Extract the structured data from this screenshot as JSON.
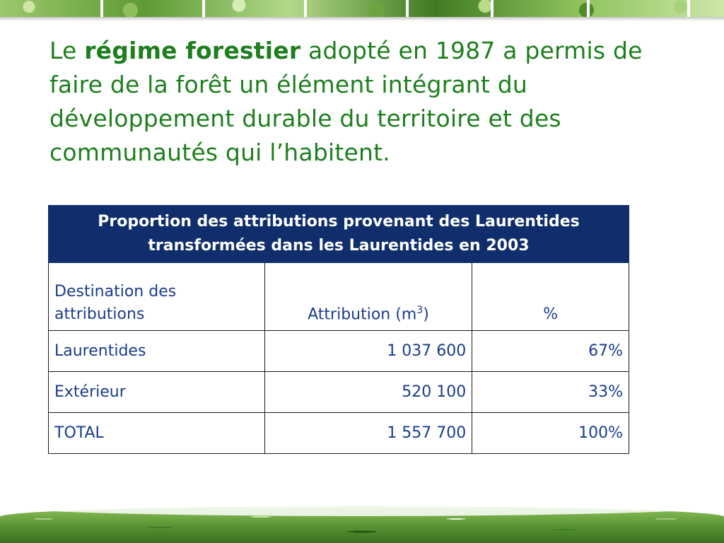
{
  "intro": {
    "prefix": "Le ",
    "bold": "régime forestier",
    "rest": " adopté en 1987 a permis de faire de la forêt un élément intégrant du développement durable du territoire et des communautés qui l’habitent."
  },
  "table": {
    "caption": "Proportion des attributions provenant des Laurentides transformées dans les Laurentides en 2003",
    "headers": {
      "destination": "Destination des attributions",
      "attribution_prefix": "Attribution (m",
      "attribution_sup": "3",
      "attribution_suffix": ")",
      "percent": "%"
    },
    "rows": [
      {
        "destination": "Laurentides",
        "attribution": "1 037 600",
        "percent": "67%"
      },
      {
        "destination": "Extérieur",
        "attribution": "520 100",
        "percent": "33%"
      },
      {
        "destination": "TOTAL",
        "attribution": "1 557 700",
        "percent": "100%"
      }
    ]
  },
  "colors": {
    "heading_text": "#1e7f1e",
    "table_header_bg": "#0f2e6b",
    "table_text": "#1a3c8c"
  }
}
